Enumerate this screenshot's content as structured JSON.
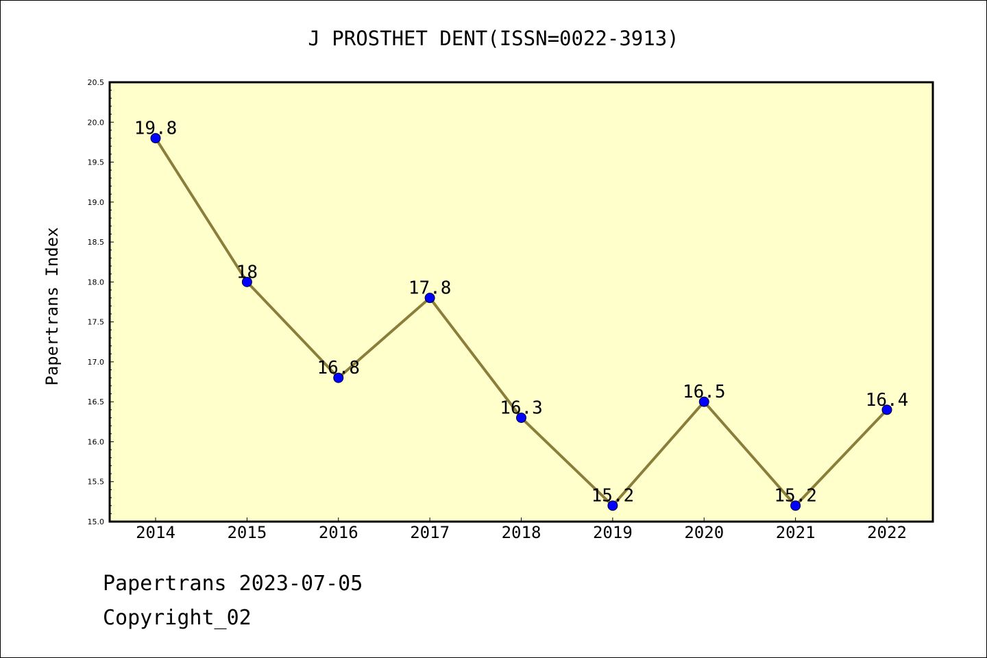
{
  "colors": {
    "plot_background": "#ffffcc",
    "line": "#8b7d3a",
    "marker": "#0000ff"
  },
  "footer": {
    "date_line": "Papertrans 2023-07-05",
    "copyright_line": "Copyright_02"
  },
  "chart_data": {
    "type": "line",
    "title": "J PROSTHET DENT(ISSN=0022-3913)",
    "xlabel": "",
    "ylabel": "Papertrans Index",
    "x": [
      "2014",
      "2015",
      "2016",
      "2017",
      "2018",
      "2019",
      "2020",
      "2021",
      "2022"
    ],
    "series": [
      {
        "values": [
          19.8,
          18,
          16.8,
          17.8,
          16.3,
          15.2,
          16.5,
          15.2,
          16.4
        ],
        "labels": [
          "19.8",
          "18",
          "16.8",
          "17.8",
          "16.3",
          "15.2",
          "16.5",
          "15.2",
          "16.4"
        ]
      }
    ],
    "ylim": [
      15.0,
      20.5
    ],
    "yticks": [
      "15.0",
      "15.5",
      "16.0",
      "16.5",
      "17.0",
      "17.5",
      "18.0",
      "18.5",
      "19.0",
      "19.5",
      "20.0",
      "20.5"
    ],
    "grid": false,
    "legend": "none"
  }
}
